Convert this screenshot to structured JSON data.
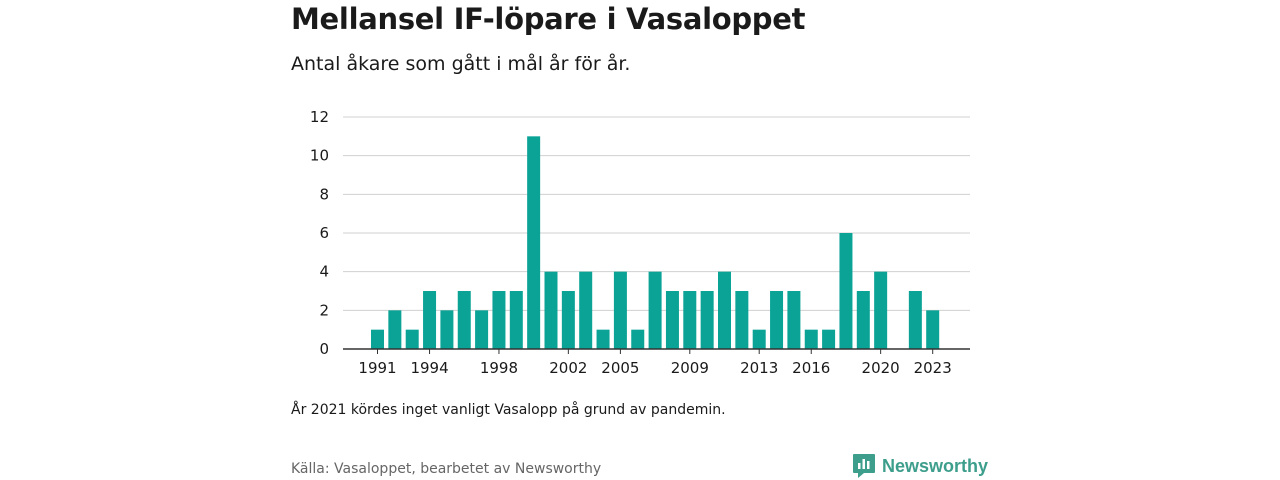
{
  "title": "Mellansel IF-löpare i Vasaloppet",
  "subtitle": "Antal åkare som gått i mål år för år.",
  "note": "År 2021 kördes inget vanligt Vasalopp på grund av pandemin.",
  "source": "Källa: Vasaloppet, bearbetet av Newsworthy",
  "brand": {
    "name": "Newsworthy",
    "icon": "newsworthy-logo-icon",
    "color": "#3d9e8c"
  },
  "chart_data": {
    "type": "bar",
    "color": "#0aa396",
    "grid": true,
    "ylim": [
      0,
      12
    ],
    "yticks": [
      0,
      2,
      4,
      6,
      8,
      10,
      12
    ],
    "xtick_labels": [
      "1991",
      "1994",
      "1998",
      "2002",
      "2005",
      "2009",
      "2013",
      "2016",
      "2020",
      "2023"
    ],
    "categories": [
      1991,
      1992,
      1993,
      1994,
      1995,
      1996,
      1997,
      1998,
      1999,
      2000,
      2001,
      2002,
      2003,
      2004,
      2005,
      2006,
      2007,
      2008,
      2009,
      2010,
      2011,
      2012,
      2013,
      2014,
      2015,
      2016,
      2017,
      2018,
      2019,
      2020,
      2021,
      2022,
      2023
    ],
    "values": [
      1,
      2,
      1,
      3,
      2,
      3,
      2,
      3,
      3,
      11,
      4,
      3,
      4,
      1,
      4,
      1,
      4,
      3,
      3,
      3,
      4,
      3,
      1,
      3,
      3,
      1,
      1,
      6,
      3,
      4,
      0,
      3,
      2
    ]
  }
}
